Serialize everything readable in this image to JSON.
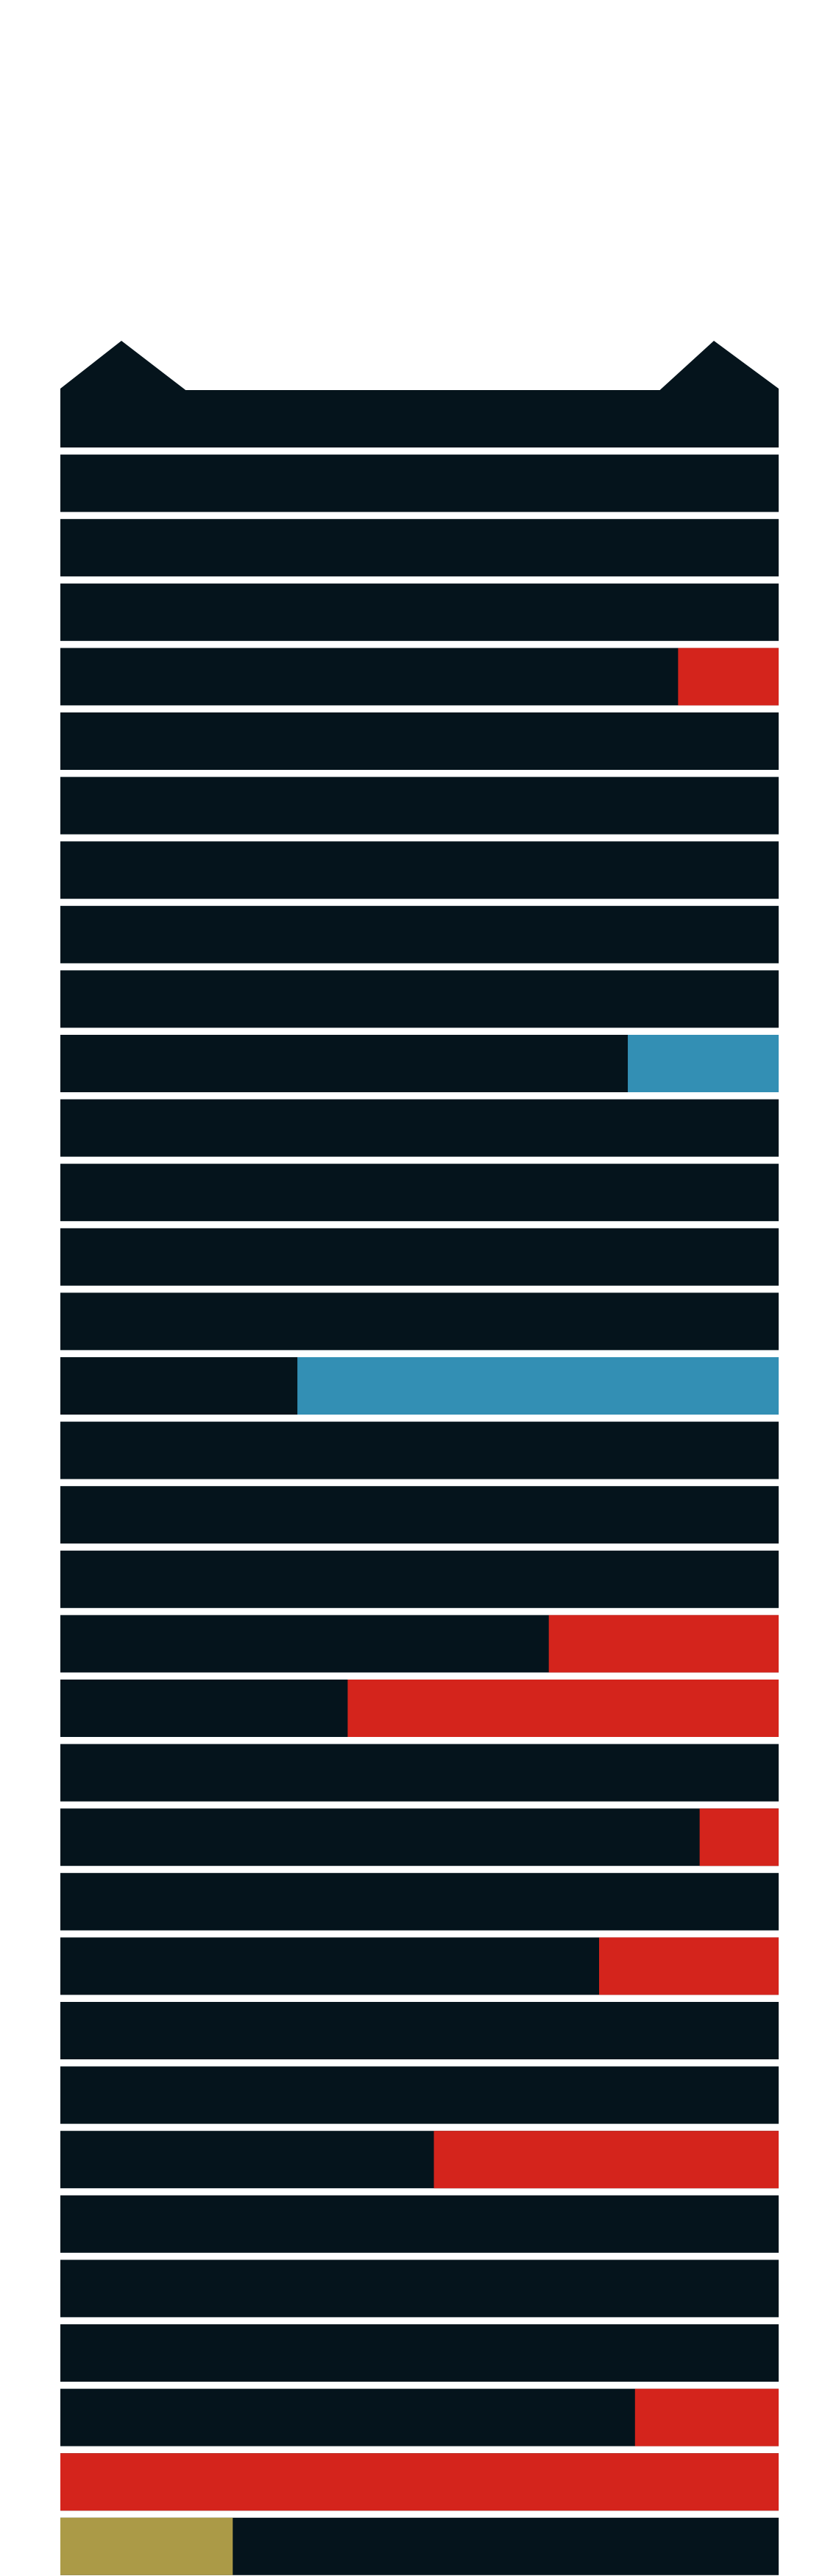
{
  "colors": {
    "background": "#ffffff",
    "bar_base": "#05141c",
    "separator": "#e9edf2",
    "red": "#d4241c",
    "blue": "#338fb4",
    "olive": "#ab9a47"
  },
  "bars": [
    {
      "fill": 0.0,
      "color": "none"
    },
    {
      "fill": 0.0,
      "color": "none"
    },
    {
      "fill": 0.0,
      "color": "none"
    },
    {
      "fill": 0.0,
      "color": "none"
    },
    {
      "fill": 0.14,
      "color": "red"
    },
    {
      "fill": 0.0,
      "color": "none"
    },
    {
      "fill": 0.0,
      "color": "none"
    },
    {
      "fill": 0.0,
      "color": "none"
    },
    {
      "fill": 0.0,
      "color": "none"
    },
    {
      "fill": 0.0,
      "color": "none"
    },
    {
      "fill": 0.21,
      "color": "blue"
    },
    {
      "fill": 0.0,
      "color": "none"
    },
    {
      "fill": 0.0,
      "color": "none"
    },
    {
      "fill": 0.0,
      "color": "none"
    },
    {
      "fill": 0.0,
      "color": "none"
    },
    {
      "fill": 0.67,
      "color": "blue"
    },
    {
      "fill": 0.0,
      "color": "none"
    },
    {
      "fill": 0.0,
      "color": "none"
    },
    {
      "fill": 0.0,
      "color": "none"
    },
    {
      "fill": 0.32,
      "color": "red"
    },
    {
      "fill": 0.6,
      "color": "red"
    },
    {
      "fill": 0.0,
      "color": "none"
    },
    {
      "fill": 0.11,
      "color": "red"
    },
    {
      "fill": 0.0,
      "color": "none"
    },
    {
      "fill": 0.25,
      "color": "red"
    },
    {
      "fill": 0.0,
      "color": "none"
    },
    {
      "fill": 0.0,
      "color": "none"
    },
    {
      "fill": 0.48,
      "color": "red"
    },
    {
      "fill": 0.0,
      "color": "none"
    },
    {
      "fill": 0.0,
      "color": "none"
    },
    {
      "fill": 0.0,
      "color": "none"
    },
    {
      "fill": 0.2,
      "color": "red"
    },
    {
      "fill": 1.0,
      "color": "red"
    },
    {
      "fill": 0.24,
      "color": "olive",
      "from": "left"
    }
  ]
}
